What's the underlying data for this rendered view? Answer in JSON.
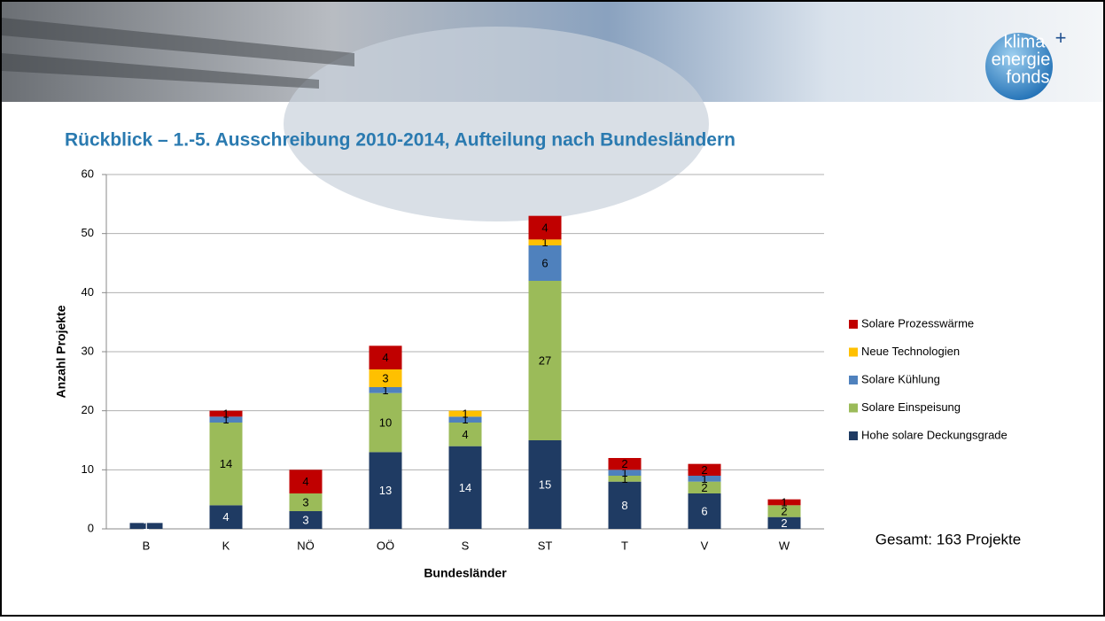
{
  "logo": {
    "lines": [
      "klima",
      "energie",
      "fonds"
    ],
    "plus": "+"
  },
  "chart_data": {
    "type": "stacked_bar",
    "title": "Rückblick  – 1.-5. Ausschreibung 2010-2014, Aufteilung nach Bundesländern",
    "x_label": "Bundesländer",
    "y_label": "Anzahl Projekte",
    "annotation": "Gesamt: 163 Projekte",
    "categories": [
      "B",
      "K",
      "NÖ",
      "OÖ",
      "S",
      "ST",
      "T",
      "V",
      "W"
    ],
    "series": [
      {
        "name": "Hohe solare Deckungsgrade",
        "color": "#1f3b63",
        "values": [
          1,
          4,
          3,
          13,
          14,
          15,
          8,
          6,
          2
        ]
      },
      {
        "name": "Solare Einspeisung",
        "color": "#9bbb59",
        "values": [
          null,
          14,
          3,
          10,
          4,
          27,
          1,
          2,
          2
        ]
      },
      {
        "name": "Solare Kühlung",
        "color": "#4f81bd",
        "values": [
          null,
          1,
          null,
          1,
          1,
          6,
          1,
          1,
          null
        ]
      },
      {
        "name": "Neue Technologien",
        "color": "#ffc000",
        "values": [
          null,
          null,
          null,
          3,
          1,
          1,
          null,
          null,
          null
        ]
      },
      {
        "name": "Solare Prozesswärme",
        "color": "#c00000",
        "values": [
          null,
          1,
          4,
          4,
          null,
          4,
          2,
          2,
          1
        ]
      }
    ],
    "ylim": [
      0,
      60
    ],
    "yticks": [
      0,
      10,
      20,
      30,
      40,
      50,
      60
    ],
    "grid": true,
    "legend": "right"
  }
}
